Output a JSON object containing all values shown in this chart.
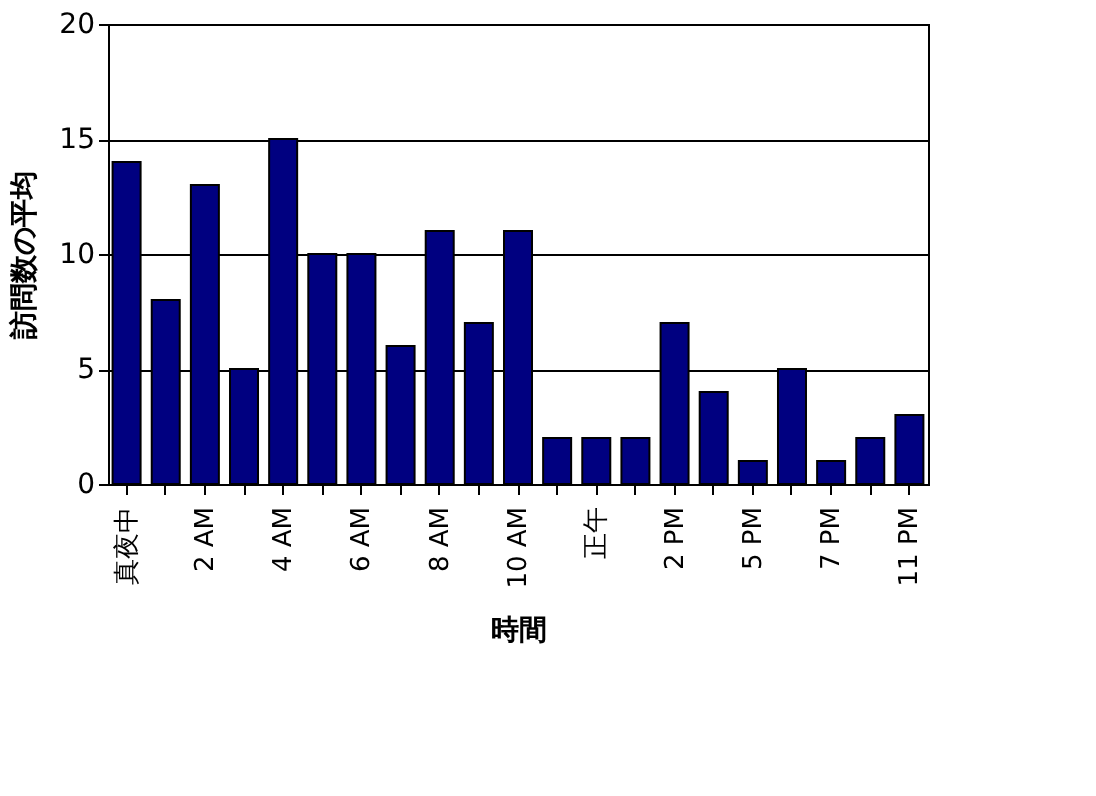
{
  "chart_data": {
    "type": "bar",
    "xlabel": "時間",
    "ylabel": "訪問数の平均",
    "categories": [
      "真夜中",
      null,
      "2 AM",
      null,
      "4 AM",
      null,
      "6 AM",
      null,
      "8 AM",
      null,
      "10 AM",
      null,
      "正午",
      null,
      "2 PM",
      null,
      "5 PM",
      null,
      "7 PM",
      null,
      "11 PM"
    ],
    "values": [
      14,
      8,
      13,
      5,
      15,
      10,
      10,
      6,
      11,
      7,
      11,
      2,
      2,
      2,
      7,
      4,
      1,
      5,
      1,
      2,
      3
    ],
    "color": "#000080",
    "ylim": [
      0,
      20
    ],
    "yticks": [
      0,
      5,
      10,
      15,
      20
    ],
    "grid": "y"
  }
}
